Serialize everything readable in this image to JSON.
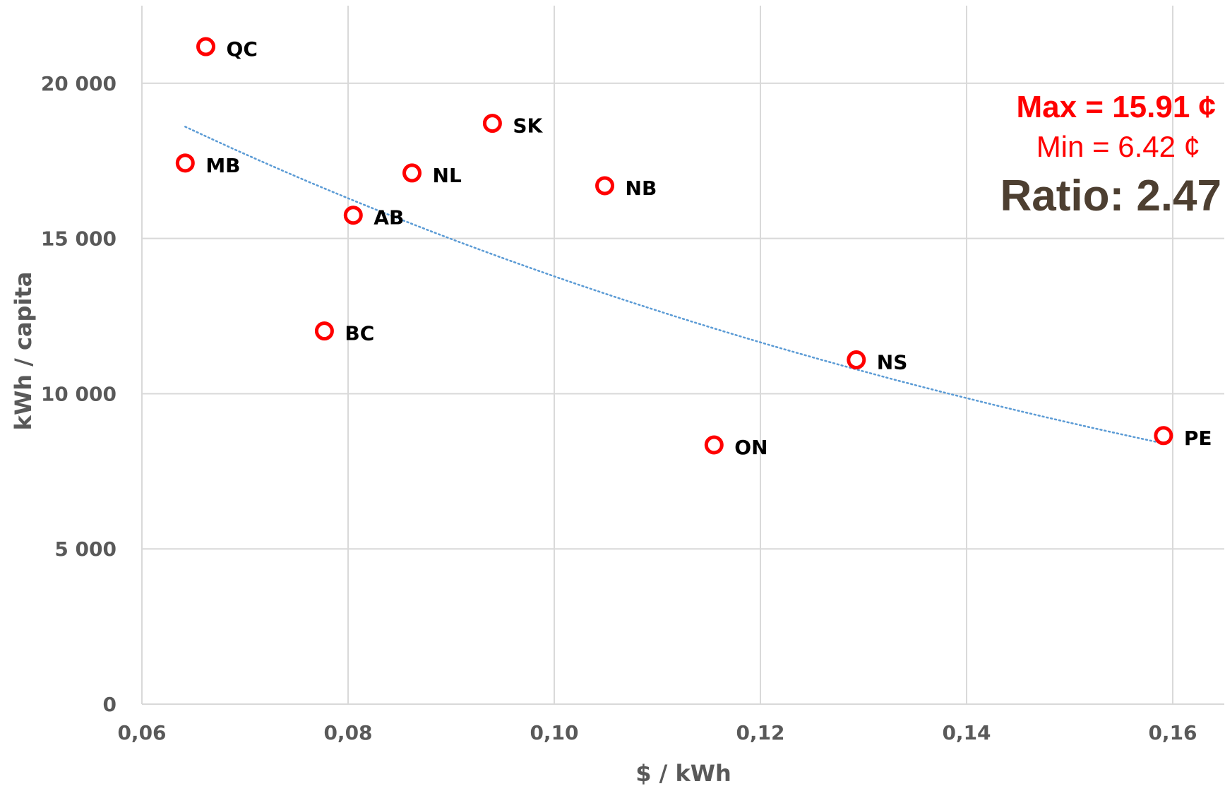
{
  "colors": {
    "point": "#ff0000",
    "trendline": "#5b9bd5",
    "grid": "#d9d9d9",
    "tick_text": "#595959",
    "ratio_text": "#4d3f31",
    "label_text": "#000000"
  },
  "chart_data": {
    "type": "scatter",
    "title": "",
    "xlabel": "$ / kWh",
    "ylabel": "kWh / capita",
    "xlim": [
      0.06,
      0.165
    ],
    "ylim": [
      0,
      22500
    ],
    "xticks": [
      {
        "value": 0.06,
        "label": "0,06"
      },
      {
        "value": 0.08,
        "label": "0,08"
      },
      {
        "value": 0.1,
        "label": "0,10"
      },
      {
        "value": 0.12,
        "label": "0,12"
      },
      {
        "value": 0.14,
        "label": "0,14"
      },
      {
        "value": 0.16,
        "label": "0,16"
      }
    ],
    "yticks": [
      {
        "value": 0,
        "label": "0"
      },
      {
        "value": 5000,
        "label": "5 000"
      },
      {
        "value": 10000,
        "label": "10 000"
      },
      {
        "value": 15000,
        "label": "15 000"
      },
      {
        "value": 20000,
        "label": "20 000"
      }
    ],
    "grid": true,
    "points": [
      {
        "label": "QC",
        "x": 0.0662,
        "y": 21180
      },
      {
        "label": "MB",
        "x": 0.0642,
        "y": 17430
      },
      {
        "label": "SK",
        "x": 0.094,
        "y": 18710
      },
      {
        "label": "NL",
        "x": 0.0862,
        "y": 17110
      },
      {
        "label": "NB",
        "x": 0.1049,
        "y": 16700
      },
      {
        "label": "AB",
        "x": 0.0805,
        "y": 15750
      },
      {
        "label": "BC",
        "x": 0.0777,
        "y": 12020
      },
      {
        "label": "NS",
        "x": 0.1293,
        "y": 11090
      },
      {
        "label": "ON",
        "x": 0.1155,
        "y": 8350
      },
      {
        "label": "PE",
        "x": 0.1591,
        "y": 8650
      }
    ],
    "trendline": {
      "style": "dotted",
      "x_range": [
        0.0642,
        0.1591
      ],
      "y_start": 18600,
      "y_end": 8400
    },
    "annotations": {
      "max": "Max = 15.91 ¢",
      "min": "Min = 6.42 ¢",
      "ratio": "Ratio: 2.47"
    }
  }
}
